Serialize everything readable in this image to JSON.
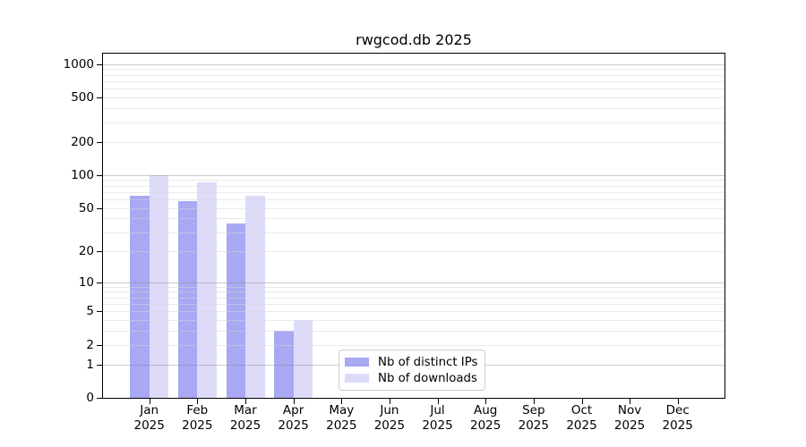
{
  "chart_data": {
    "type": "bar",
    "title": "rwgcod.db 2025",
    "categories": [
      "Jan",
      "Feb",
      "Mar",
      "Apr",
      "May",
      "Jun",
      "Jul",
      "Aug",
      "Sep",
      "Oct",
      "Nov",
      "Dec"
    ],
    "x_tick_second_line": "2025",
    "series": [
      {
        "name": "Nb of distinct IPs",
        "color": "#a8a8f3",
        "values": [
          65,
          58,
          36,
          3,
          0,
          0,
          0,
          0,
          0,
          0,
          0,
          0
        ]
      },
      {
        "name": "Nb of downloads",
        "color": "#dcdcf9",
        "values": [
          100,
          85,
          65,
          4,
          0,
          0,
          0,
          0,
          0,
          0,
          0,
          0
        ]
      }
    ],
    "yscale": "log(1+x)",
    "y_ticks": [
      1000,
      500,
      200,
      100,
      50,
      20,
      10,
      5,
      2,
      1,
      0
    ],
    "ylim": [
      0,
      1243
    ],
    "grid": true,
    "legend_position": "lower center"
  },
  "colors": {
    "major_gridline_on_white": "#cccccc",
    "minor_gridline_on_white": "#f0f0f0",
    "spine": "#000000",
    "legend_border": "#cccccc",
    "background": "#ffffff"
  }
}
